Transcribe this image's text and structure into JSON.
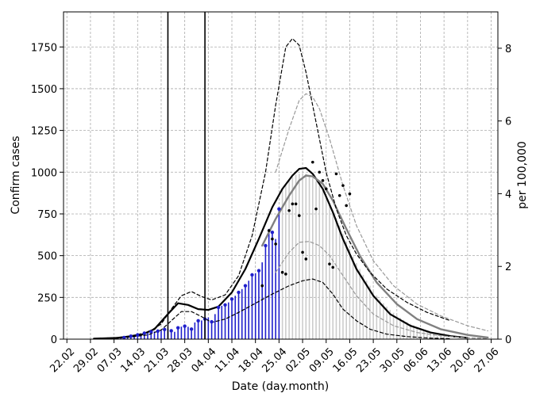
{
  "chart_data": {
    "type": "line",
    "title": "",
    "xlabel": "Date (day.month)",
    "ylabel": "Confirm cases",
    "ylabel_right": "per 100,000",
    "x_ticks": [
      "22.02",
      "29.02",
      "07.03",
      "14.03",
      "21.03",
      "28.03",
      "04.04",
      "11.04",
      "18.04",
      "25.04",
      "02.05",
      "09.05",
      "16.05",
      "23.05",
      "30.05",
      "06.06",
      "13.06",
      "20.06",
      "27.06"
    ],
    "xlim": [
      "2020-02-21",
      "2020-06-29"
    ],
    "ylim": [
      0,
      1960
    ],
    "y_ticks": [
      0,
      250,
      500,
      750,
      1000,
      1250,
      1500,
      1750
    ],
    "ylim_right": [
      0,
      9.0
    ],
    "y_ticks_right": [
      0,
      2,
      4,
      6,
      8
    ],
    "grid": true,
    "vertical_lines": [
      "2020-03-23",
      "2020-04-03"
    ],
    "observed_bars": {
      "color": "#1f1fcc",
      "x": [
        "2020-03-01",
        "2020-03-02",
        "2020-03-03",
        "2020-03-04",
        "2020-03-05",
        "2020-03-06",
        "2020-03-07",
        "2020-03-08",
        "2020-03-09",
        "2020-03-10",
        "2020-03-11",
        "2020-03-12",
        "2020-03-13",
        "2020-03-14",
        "2020-03-15",
        "2020-03-16",
        "2020-03-17",
        "2020-03-18",
        "2020-03-19",
        "2020-03-20",
        "2020-03-21",
        "2020-03-22",
        "2020-03-23",
        "2020-03-24",
        "2020-03-25",
        "2020-03-26",
        "2020-03-27",
        "2020-03-28",
        "2020-03-29",
        "2020-03-30",
        "2020-03-31",
        "2020-04-01",
        "2020-04-02",
        "2020-04-03",
        "2020-04-04",
        "2020-04-05",
        "2020-04-06",
        "2020-04-07",
        "2020-04-08",
        "2020-04-09",
        "2020-04-10",
        "2020-04-11",
        "2020-04-12",
        "2020-04-13",
        "2020-04-14",
        "2020-04-15",
        "2020-04-16",
        "2020-04-17",
        "2020-04-18",
        "2020-04-19",
        "2020-04-20",
        "2020-04-21",
        "2020-04-22",
        "2020-04-23",
        "2020-04-24",
        "2020-04-25"
      ],
      "values": [
        2,
        2,
        3,
        3,
        4,
        4,
        5,
        6,
        8,
        10,
        14,
        18,
        22,
        26,
        32,
        36,
        40,
        44,
        46,
        48,
        52,
        58,
        62,
        50,
        44,
        68,
        75,
        78,
        74,
        60,
        100,
        110,
        112,
        120,
        130,
        104,
        150,
        190,
        200,
        205,
        220,
        240,
        260,
        280,
        300,
        320,
        350,
        385,
        395,
        410,
        460,
        560,
        660,
        640,
        600,
        780
      ]
    },
    "forecast_bars": {
      "color": "#cccccc",
      "x": [
        "2020-04-26",
        "2020-04-27",
        "2020-04-28",
        "2020-04-29",
        "2020-04-30",
        "2020-05-01",
        "2020-05-02",
        "2020-05-03",
        "2020-05-04",
        "2020-05-05",
        "2020-05-06",
        "2020-05-07",
        "2020-05-08",
        "2020-05-09",
        "2020-05-10",
        "2020-05-11",
        "2020-05-12",
        "2020-05-13",
        "2020-05-14",
        "2020-05-15",
        "2020-05-16",
        "2020-05-17",
        "2020-05-18",
        "2020-05-19",
        "2020-05-20",
        "2020-05-21",
        "2020-05-22",
        "2020-05-23",
        "2020-05-24",
        "2020-05-25",
        "2020-05-26",
        "2020-05-27",
        "2020-05-28",
        "2020-05-29",
        "2020-05-30",
        "2020-05-31",
        "2020-06-01",
        "2020-06-02",
        "2020-06-03",
        "2020-06-04",
        "2020-06-05",
        "2020-06-06",
        "2020-06-07",
        "2020-06-08",
        "2020-06-09",
        "2020-06-10",
        "2020-06-11",
        "2020-06-12",
        "2020-06-13"
      ],
      "values": [
        900,
        920,
        950,
        970,
        985,
        990,
        995,
        990,
        980,
        965,
        945,
        920,
        890,
        855,
        815,
        770,
        725,
        680,
        630,
        585,
        540,
        495,
        455,
        420,
        385,
        350,
        320,
        290,
        262,
        238,
        215,
        195,
        175,
        158,
        142,
        128,
        115,
        103,
        92,
        82,
        73,
        65,
        57,
        50,
        44,
        38,
        33,
        28,
        24
      ]
    },
    "observed_points": {
      "color": "#1f1fcc",
      "x": [
        "2020-03-10",
        "2020-03-12",
        "2020-03-14",
        "2020-03-16",
        "2020-03-18",
        "2020-03-20",
        "2020-03-22",
        "2020-03-24",
        "2020-03-26",
        "2020-03-28",
        "2020-03-30",
        "2020-04-01",
        "2020-04-03",
        "2020-04-05",
        "2020-04-07",
        "2020-04-09",
        "2020-04-11",
        "2020-04-13",
        "2020-04-15",
        "2020-04-17",
        "2020-04-19",
        "2020-04-21",
        "2020-04-23",
        "2020-04-25"
      ],
      "values": [
        10,
        18,
        26,
        36,
        44,
        48,
        58,
        50,
        68,
        78,
        60,
        110,
        120,
        104,
        190,
        205,
        240,
        280,
        320,
        385,
        410,
        560,
        640,
        780
      ]
    },
    "scatter_points": {
      "color": "#000000",
      "x": [
        "2020-04-20",
        "2020-04-22",
        "2020-04-23",
        "2020-04-24",
        "2020-04-26",
        "2020-04-27",
        "2020-04-28",
        "2020-04-29",
        "2020-04-30",
        "2020-05-01",
        "2020-05-02",
        "2020-05-03",
        "2020-05-05",
        "2020-05-06",
        "2020-05-07",
        "2020-05-08",
        "2020-05-09",
        "2020-05-10",
        "2020-05-11",
        "2020-05-12",
        "2020-05-13",
        "2020-05-14",
        "2020-05-15",
        "2020-05-16"
      ],
      "values": [
        320,
        650,
        600,
        570,
        400,
        390,
        770,
        810,
        810,
        740,
        520,
        480,
        1060,
        780,
        1000,
        950,
        900,
        450,
        430,
        990,
        860,
        920,
        800,
        870
      ]
    },
    "series": [
      {
        "style": "solid",
        "color": "#000000",
        "x": [
          "2020-03-01",
          "2020-03-08",
          "2020-03-15",
          "2020-03-19",
          "2020-03-23",
          "2020-03-26",
          "2020-03-29",
          "2020-04-01",
          "2020-04-04",
          "2020-04-07",
          "2020-04-11",
          "2020-04-15",
          "2020-04-19",
          "2020-04-23",
          "2020-04-26",
          "2020-04-29",
          "2020-05-01",
          "2020-05-03",
          "2020-05-05",
          "2020-05-08",
          "2020-05-11",
          "2020-05-14",
          "2020-05-18",
          "2020-05-23",
          "2020-05-28",
          "2020-06-03",
          "2020-06-09",
          "2020-06-15",
          "2020-06-20"
        ],
        "values": [
          3,
          8,
          25,
          60,
          150,
          215,
          205,
          180,
          175,
          195,
          280,
          420,
          600,
          790,
          900,
          980,
          1020,
          1025,
          990,
          900,
          760,
          600,
          420,
          260,
          150,
          80,
          40,
          18,
          8
        ]
      },
      {
        "style": "solid",
        "color": "#808080",
        "x": [
          "2020-04-20",
          "2020-04-24",
          "2020-04-28",
          "2020-05-01",
          "2020-05-03",
          "2020-05-05",
          "2020-05-08",
          "2020-05-11",
          "2020-05-15",
          "2020-05-19",
          "2020-05-24",
          "2020-05-30",
          "2020-06-05",
          "2020-06-12",
          "2020-06-20",
          "2020-06-26"
        ],
        "values": [
          560,
          720,
          860,
          950,
          980,
          975,
          930,
          830,
          660,
          500,
          340,
          210,
          120,
          60,
          25,
          10
        ]
      },
      {
        "style": "dashed",
        "color": "#000000",
        "x": [
          "2020-03-01",
          "2020-03-10",
          "2020-03-17",
          "2020-03-21",
          "2020-03-24",
          "2020-03-27",
          "2020-03-30",
          "2020-04-02",
          "2020-04-05",
          "2020-04-09",
          "2020-04-13",
          "2020-04-17",
          "2020-04-21",
          "2020-04-24",
          "2020-04-27",
          "2020-04-29",
          "2020-05-01",
          "2020-05-03",
          "2020-05-06",
          "2020-05-09",
          "2020-05-12",
          "2020-05-15",
          "2020-05-18",
          "2020-05-22",
          "2020-05-27",
          "2020-06-02",
          "2020-06-08",
          "2020-06-15"
        ],
        "values": [
          3,
          12,
          40,
          90,
          180,
          260,
          285,
          255,
          235,
          265,
          380,
          620,
          1000,
          1400,
          1750,
          1800,
          1760,
          1600,
          1300,
          1000,
          780,
          620,
          510,
          400,
          300,
          220,
          160,
          110
        ]
      },
      {
        "style": "dashed",
        "color": "#000000",
        "x": [
          "2020-03-01",
          "2020-03-10",
          "2020-03-17",
          "2020-03-21",
          "2020-03-24",
          "2020-03-27",
          "2020-03-30",
          "2020-04-02",
          "2020-04-05",
          "2020-04-09",
          "2020-04-13",
          "2020-04-18",
          "2020-04-23",
          "2020-04-28",
          "2020-05-02",
          "2020-05-05",
          "2020-05-08",
          "2020-05-11",
          "2020-05-14",
          "2020-05-18",
          "2020-05-22",
          "2020-05-27",
          "2020-06-02",
          "2020-06-09",
          "2020-06-15"
        ],
        "values": [
          2,
          8,
          25,
          55,
          110,
          165,
          165,
          135,
          100,
          120,
          160,
          215,
          270,
          320,
          350,
          360,
          340,
          270,
          180,
          110,
          60,
          30,
          15,
          6,
          3
        ]
      },
      {
        "style": "dashed",
        "color": "#999999",
        "x": [
          "2020-04-24",
          "2020-04-28",
          "2020-05-01",
          "2020-05-03",
          "2020-05-05",
          "2020-05-07",
          "2020-05-10",
          "2020-05-14",
          "2020-05-18",
          "2020-05-23",
          "2020-05-29",
          "2020-06-05",
          "2020-06-12",
          "2020-06-20",
          "2020-06-26"
        ],
        "values": [
          1000,
          1260,
          1430,
          1470,
          1450,
          1380,
          1200,
          920,
          680,
          470,
          320,
          210,
          140,
          80,
          50
        ]
      },
      {
        "style": "dashed",
        "color": "#999999",
        "x": [
          "2020-04-24",
          "2020-04-28",
          "2020-05-01",
          "2020-05-04",
          "2020-05-07",
          "2020-05-10",
          "2020-05-14",
          "2020-05-18",
          "2020-05-23",
          "2020-05-29",
          "2020-06-05",
          "2020-06-12",
          "2020-06-20",
          "2020-06-26"
        ],
        "values": [
          400,
          520,
          580,
          585,
          560,
          500,
          380,
          260,
          150,
          80,
          40,
          20,
          8,
          4
        ]
      }
    ]
  }
}
